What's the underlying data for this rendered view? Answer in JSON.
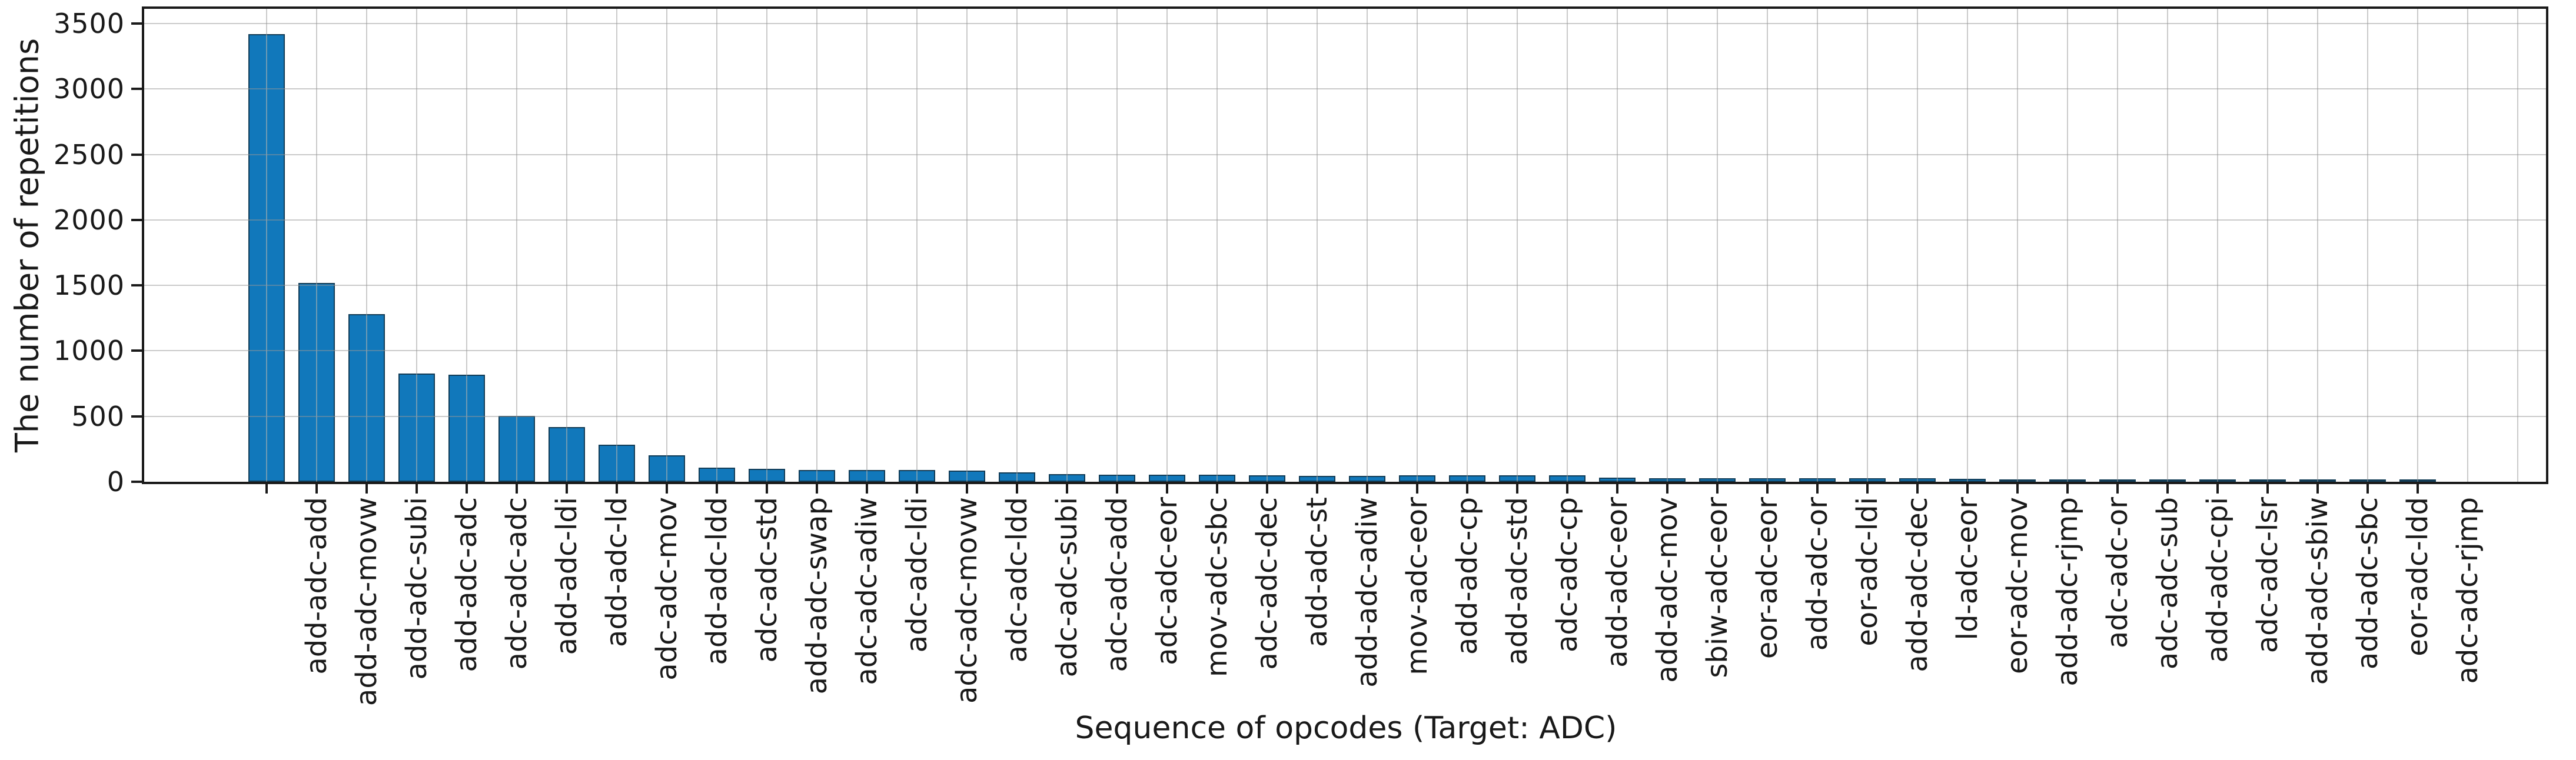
{
  "figure": {
    "bar_color": "#1178bb",
    "bar_edge_color": "#123c56",
    "bar_stripe_color": "rgba(140,210,240,0.45)",
    "grid_color": "rgba(150,150,150,0.5)",
    "spine_color": "#1a1a1a",
    "text_color": "#191919",
    "background": "#ffffff"
  },
  "chart_data": {
    "type": "bar",
    "title": "",
    "xlabel": "Sequence of opcodes (Target: ADC)",
    "ylabel": "The number of repetitions",
    "ylim": [
      0,
      3500
    ],
    "yticks": [
      0,
      500,
      1000,
      1500,
      2000,
      2500,
      3000,
      3500
    ],
    "grid": "both",
    "legend": "none",
    "categories": [
      "add-adc-add",
      "add-adc-movw",
      "add-adc-subi",
      "add-adc-adc",
      "adc-adc-adc",
      "add-adc-ldi",
      "add-adc-ld",
      "adc-adc-mov",
      "add-adc-ldd",
      "adc-adc-std",
      "add-adc-swap",
      "adc-adc-adiw",
      "adc-adc-ldi",
      "adc-adc-movw",
      "adc-adc-ldd",
      "adc-adc-subi",
      "adc-adc-add",
      "adc-adc-eor",
      "mov-adc-sbc",
      "adc-adc-dec",
      "add-adc-st",
      "add-adc-adiw",
      "mov-adc-eor",
      "add-adc-cp",
      "add-adc-std",
      "adc-adc-cp",
      "add-adc-eor",
      "add-adc-mov",
      "sbiw-adc-eor",
      "eor-adc-eor",
      "add-adc-or",
      "eor-adc-ldi",
      "add-adc-dec",
      "ld-adc-eor",
      "eor-adc-mov",
      "add-adc-rjmp",
      "adc-adc-or",
      "adc-adc-sub",
      "add-adc-cpi",
      "adc-adc-lsr",
      "add-adc-sbiw",
      "add-adc-sbc",
      "eor-adc-ldd",
      "adc-adc-rjmp"
    ],
    "values": [
      3420,
      1520,
      1280,
      825,
      818,
      505,
      420,
      283,
      200,
      107,
      99,
      92,
      90,
      88,
      85,
      70,
      58,
      55,
      54,
      52,
      48,
      45,
      47,
      50,
      50,
      49,
      51,
      30,
      26,
      28,
      28,
      27,
      26,
      25,
      22,
      8,
      6,
      5,
      5,
      4,
      4,
      3,
      3,
      2
    ]
  }
}
